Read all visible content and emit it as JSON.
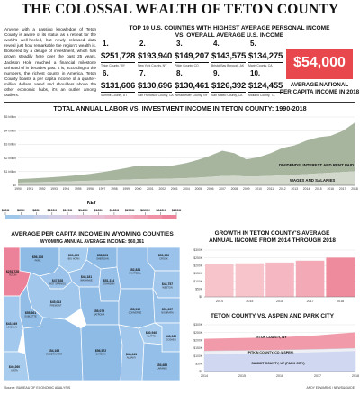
{
  "page": {
    "title": "THE COLOSSAL WEALTH OF TETON COUNTY",
    "intro": "Anyone with a passing knowledge of Teton County is aware of its status as a retreat for the world's well-heeled, but newly released data reveal just how remarkable the region's wealth is. Bolstered by a deluge of investment, which has grown steadily here over the past 25 years, Jackson Hole reached a financial milestone unheard of in decades past: it is, according to the numbers, the richest county in America. Teton County boasts a per capita income of a quarter-million dollars. Head and shoulders above the other economic hubs, it's an outlier among outliers.",
    "source": "Source: BUREAU OF ECONOMIC ANALYSIS",
    "credit": "ANDY EDWARDS / NEWS&GUIDE"
  },
  "top10": {
    "title_line1": "TOP 10 U.S. COUNTIES WITH HIGHEST AVERAGE PERSONAL INCOME",
    "title_line2": "VS. OVERALL AVERAGE U.S. INCOME",
    "counties": [
      {
        "rank": "1.",
        "value": "$251,728",
        "name": "Teton County, WY"
      },
      {
        "rank": "2.",
        "value": "$193,940",
        "name": "New York County, NY"
      },
      {
        "rank": "3.",
        "value": "$149,207",
        "name": "Pitkin County, CO"
      },
      {
        "rank": "4.",
        "value": "$143,575",
        "name": "Bristol Bay Borough, AK"
      },
      {
        "rank": "5.",
        "value": "$134,275",
        "name": "Marin County, CA"
      },
      {
        "rank": "6.",
        "value": "$131,606",
        "name": "Summit County, UT"
      },
      {
        "rank": "7.",
        "value": "$130,696",
        "name": "San Francisco County, CA"
      },
      {
        "rank": "8.",
        "value": "$130,461",
        "name": "Westchester County, NY"
      },
      {
        "rank": "9.",
        "value": "$126,392",
        "name": "San Mateo County, CA"
      },
      {
        "rank": "10.",
        "value": "$124,455",
        "name": "Midland County, TX"
      }
    ],
    "national_value": "$54,000",
    "national_label_line1": "AVERAGE NATIONAL",
    "national_label_line2": "PER CAPITA INCOME IN 2018",
    "national_color": "#e8474d"
  },
  "chart_data": [
    {
      "type": "area",
      "title": "TOTAL ANNUAL LABOR VS. INVESTMENT INCOME IN TETON COUNTY: 1990-2018",
      "x": [
        1990,
        1991,
        1992,
        1993,
        1994,
        1995,
        1996,
        1997,
        1998,
        1999,
        2000,
        2001,
        2002,
        2003,
        2004,
        2005,
        2006,
        2007,
        2008,
        2009,
        2010,
        2011,
        2012,
        2013,
        2014,
        2015,
        2016,
        2017,
        2018
      ],
      "ylim": [
        0,
        5000000000
      ],
      "yticks": [
        "$0",
        "$1 billion",
        "$2 billion",
        "$3 billion",
        "$4 billion",
        "$5 billion"
      ],
      "series": [
        {
          "name": "WAGES AND SALARIES",
          "color": "#d2d9cc",
          "values": [
            200000000,
            220000000,
            240000000,
            260000000,
            285000000,
            310000000,
            335000000,
            360000000,
            390000000,
            420000000,
            450000000,
            470000000,
            480000000,
            500000000,
            530000000,
            570000000,
            620000000,
            680000000,
            700000000,
            650000000,
            660000000,
            690000000,
            730000000,
            770000000,
            820000000,
            870000000,
            920000000,
            970000000,
            1020000000
          ]
        },
        {
          "name": "DIVIDENDS, INTEREST AND RENT PAID",
          "color": "#a8b59e",
          "values": [
            250000000,
            270000000,
            300000000,
            340000000,
            380000000,
            430000000,
            500000000,
            600000000,
            720000000,
            850000000,
            1000000000,
            950000000,
            900000000,
            960000000,
            1100000000,
            1300000000,
            1550000000,
            1850000000,
            1650000000,
            1250000000,
            1400000000,
            1650000000,
            2000000000,
            2150000000,
            2450000000,
            2650000000,
            2700000000,
            3000000000,
            3550000000
          ]
        }
      ]
    },
    {
      "type": "bar",
      "title_line1": "GROWTH IN TETON COUNTY'S AVERAGE",
      "title_line2": "ANNUAL INCOME FROM 2014 THROUGH 2018",
      "categories": [
        "2014",
        "2015",
        "2016",
        "2017",
        "2018"
      ],
      "values": [
        210000,
        215000,
        220000,
        232000,
        251728
      ],
      "ylim": [
        0,
        300000
      ],
      "yticks": [
        "$0",
        "$50K",
        "$100K",
        "$150K",
        "$200K",
        "$250K",
        "$300K"
      ],
      "colors": [
        "#f7c4cc",
        "#f7c4cc",
        "#f5b8c2",
        "#f3aab6",
        "#ee8c9d"
      ]
    },
    {
      "type": "area",
      "title": "TETON COUNTY VS. ASPEN AND PARK CITY",
      "x": [
        2014,
        2015,
        2016,
        2017,
        2018
      ],
      "ylim": [
        0,
        300000
      ],
      "yticks": [
        "$0",
        "$50K",
        "$100K",
        "$150K",
        "$200K",
        "$250K",
        "$300K"
      ],
      "series": [
        {
          "name": "SUMMIT COUNTY, UT (PARK CITY)",
          "color": "#cfd8f0",
          "values": [
            110000,
            114000,
            118000,
            124000,
            131606
          ]
        },
        {
          "name": "PITKIN COUNTY, CO (ASPEN)",
          "color": "#eef0f5",
          "values": [
            132000,
            135000,
            138000,
            143000,
            149207
          ]
        },
        {
          "name": "TETON COUNTY, WY",
          "color": "#f19aaa",
          "values": [
            210000,
            215000,
            220000,
            232000,
            251728
          ]
        }
      ]
    }
  ],
  "map": {
    "title": "AVERAGE PER CAPITA INCOME IN WYOMING COUNTIES",
    "subtitle": "WYOMING ANNUAL AVERAGE INCOME: $60,361",
    "key_label": "KEY",
    "key_ticks": [
      "$40K",
      "$60K",
      "$80K",
      "$100K",
      "$120K",
      "$140K",
      "$160K",
      "$180K",
      "$200K",
      "$220K",
      "$240K",
      "$260K"
    ],
    "key_colors": [
      "#9fc7ea",
      "#b6ccea",
      "#c7cfe8",
      "#d4cee6",
      "#dccbe2",
      "#e3c6dc",
      "#e8bfd4",
      "#ecb5ca",
      "#efabbf",
      "#f0a0b4",
      "#ef92a7",
      "#ec8299"
    ],
    "counties": [
      {
        "name": "TETON",
        "value": "$251,728",
        "color": "#ec8299"
      },
      {
        "name": "PARK",
        "value": "$56,108",
        "color": "#8dbbe6"
      },
      {
        "name": "BIG HORN",
        "value": "$39,405",
        "color": "#a5cbee"
      },
      {
        "name": "SHERIDAN",
        "value": "$58,223",
        "color": "#8dbbe6"
      },
      {
        "name": "CROOK",
        "value": "$50,980",
        "color": "#9ac2ea"
      },
      {
        "name": "WASHAKIE",
        "value": "$48,181",
        "color": "#9ac2ea"
      },
      {
        "name": "HOT SPRINGS",
        "value": "$47,528",
        "color": "#9ac2ea"
      },
      {
        "name": "JOHNSON",
        "value": "$51,314",
        "color": "#98c1ea"
      },
      {
        "name": "CAMPBELL",
        "value": "$52,824",
        "color": "#96c0e9"
      },
      {
        "name": "WESTON",
        "value": "$44,757",
        "color": "#a1c7ec"
      },
      {
        "name": "FREMONT",
        "value": "$45,013",
        "color": "#a1c7ec"
      },
      {
        "name": "SUBLETTE",
        "value": "$55,361",
        "color": "#91bde7"
      },
      {
        "name": "NATRONA",
        "value": "$55,079",
        "color": "#91bde7"
      },
      {
        "name": "CONVERSE",
        "value": "$55,912",
        "color": "#91bde7"
      },
      {
        "name": "NIOBRARA",
        "value": "$51,397",
        "color": "#98c1ea"
      },
      {
        "name": "LINCOLN",
        "value": "$43,549",
        "color": "#a3c8ed"
      },
      {
        "name": "SWEETWATER",
        "value": "$54,165",
        "color": "#93bee8"
      },
      {
        "name": "CARBON",
        "value": "$56,572",
        "color": "#8dbbe6"
      },
      {
        "name": "PLATTE",
        "value": "$40,940",
        "color": "#a7ccee"
      },
      {
        "name": "GOSHEN",
        "value": "$43,969",
        "color": "#a3c8ed"
      },
      {
        "name": "ALBANY",
        "value": "$44,441",
        "color": "#a2c7ec"
      },
      {
        "name": "LARAMIE",
        "value": "$53,686",
        "color": "#94bfe8"
      },
      {
        "name": "UINTA",
        "value": "$40,260",
        "color": "#a7ccee"
      }
    ]
  }
}
